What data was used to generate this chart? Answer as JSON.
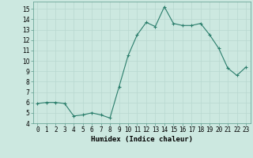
{
  "x": [
    0,
    1,
    2,
    3,
    4,
    5,
    6,
    7,
    8,
    9,
    10,
    11,
    12,
    13,
    14,
    15,
    16,
    17,
    18,
    19,
    20,
    21,
    22,
    23
  ],
  "y": [
    5.9,
    6.0,
    6.0,
    5.9,
    4.7,
    4.8,
    5.0,
    4.8,
    4.5,
    7.5,
    10.5,
    12.5,
    13.7,
    13.3,
    15.2,
    13.6,
    13.4,
    13.4,
    13.6,
    12.5,
    11.2,
    9.3,
    8.6,
    9.4
  ],
  "line_color": "#2a7d6b",
  "marker": "+",
  "marker_size": 3,
  "background_color": "#cce8e0",
  "grid_color": "#b8d8d0",
  "xlabel": "Humidex (Indice chaleur)",
  "xlim": [
    -0.5,
    23.5
  ],
  "ylim": [
    4,
    15.7
  ],
  "yticks": [
    4,
    5,
    6,
    7,
    8,
    9,
    10,
    11,
    12,
    13,
    14,
    15
  ],
  "xtick_labels": [
    "0",
    "1",
    "2",
    "3",
    "4",
    "5",
    "6",
    "7",
    "8",
    "9",
    "10",
    "11",
    "12",
    "13",
    "14",
    "15",
    "16",
    "17",
    "18",
    "19",
    "20",
    "21",
    "22",
    "23"
  ],
  "xlabel_fontsize": 6.5,
  "tick_fontsize": 5.5
}
